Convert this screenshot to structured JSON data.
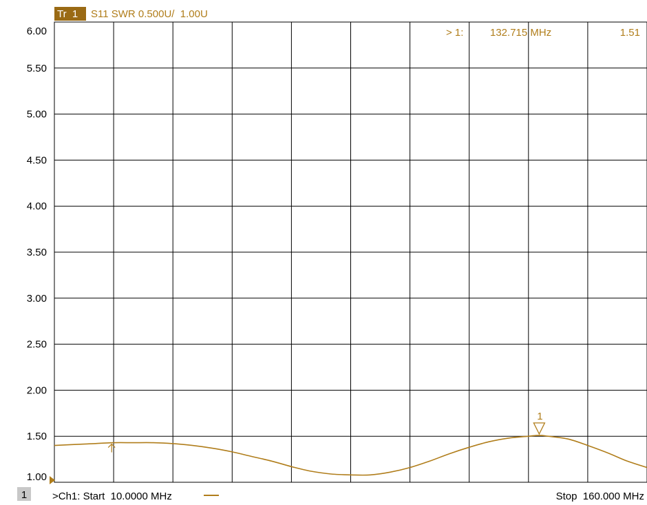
{
  "trace_header": {
    "badge": "Tr  1",
    "label": "S11 SWR 0.500U/  1.00U"
  },
  "marker_readout": {
    "prefix": "> 1:",
    "frequency": "132.715 MHz",
    "value": "1.51"
  },
  "channel_badge": "1",
  "footer": {
    "start": ">Ch1: Start  10.0000 MHz",
    "stop": "Stop  160.000 MHz"
  },
  "colors": {
    "trace": "#b07d1a",
    "grid": "#000000",
    "badge_bg": "#9a6a14",
    "badge_text": "#ffffff",
    "channel_bg": "#c8c8c8"
  },
  "chart_data": {
    "type": "line",
    "title": "S11 SWR 0.500U/  1.00U",
    "xlabel": "",
    "ylabel": "",
    "xlim": [
      10,
      160
    ],
    "ylim": [
      1.0,
      6.0
    ],
    "x_divisions": 10,
    "ytick_labels": [
      "6.00",
      "5.50",
      "5.00",
      "4.50",
      "4.00",
      "3.50",
      "3.00",
      "2.50",
      "2.00",
      "1.50",
      "1.00"
    ],
    "grid": true,
    "series": [
      {
        "x": [
          10,
          15,
          20,
          25,
          30,
          35,
          40,
          45,
          50,
          55,
          60,
          65,
          70,
          75,
          80,
          85,
          90,
          95,
          100,
          105,
          110,
          115,
          120,
          125,
          130,
          132.715,
          135,
          140,
          145,
          150,
          155,
          160
        ],
        "y": [
          1.4,
          1.41,
          1.42,
          1.43,
          1.43,
          1.43,
          1.42,
          1.4,
          1.37,
          1.33,
          1.28,
          1.23,
          1.17,
          1.12,
          1.09,
          1.08,
          1.08,
          1.11,
          1.16,
          1.23,
          1.31,
          1.38,
          1.44,
          1.48,
          1.5,
          1.51,
          1.5,
          1.47,
          1.4,
          1.32,
          1.23,
          1.16
        ]
      }
    ],
    "markers": [
      {
        "label": "1",
        "x": 132.715,
        "y": 1.51,
        "symbol": "triangle-down"
      },
      {
        "label": "",
        "x": 24.5,
        "y": 1.43,
        "symbol": "arrow-up"
      }
    ],
    "reference_level": 1.0
  }
}
